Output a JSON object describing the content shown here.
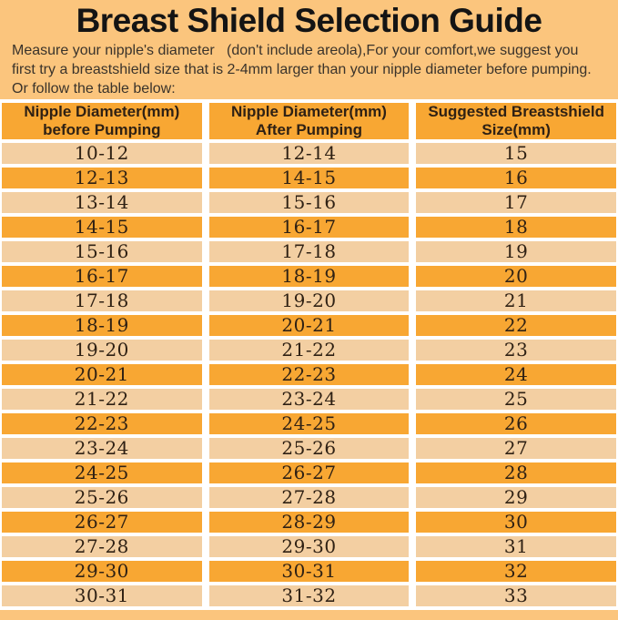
{
  "title": "Breast Shield Selection Guide",
  "intro": {
    "line1": "Measure your nipple's diameter   (don't include areola),For your comfort,we suggest you",
    "line2": "first try a breastshield size that is 2-4mm larger than your nipple diameter before pumping.",
    "line3": "Or follow the table below:"
  },
  "table": {
    "headers": [
      "Nipple Diameter(mm)\nbefore Pumping",
      "Nipple Diameter(mm)\nAfter Pumping",
      "Suggested Breastshield\nSize(mm)"
    ],
    "rows": [
      [
        "10-12",
        "12-14",
        "15"
      ],
      [
        "12-13",
        "14-15",
        "16"
      ],
      [
        "13-14",
        "15-16",
        "17"
      ],
      [
        "14-15",
        "16-17",
        "18"
      ],
      [
        "15-16",
        "17-18",
        "19"
      ],
      [
        "16-17",
        "18-19",
        "20"
      ],
      [
        "17-18",
        "19-20",
        "21"
      ],
      [
        "18-19",
        "20-21",
        "22"
      ],
      [
        "19-20",
        "21-22",
        "23"
      ],
      [
        "20-21",
        "22-23",
        "24"
      ],
      [
        "21-22",
        "23-24",
        "25"
      ],
      [
        "22-23",
        "24-25",
        "26"
      ],
      [
        "23-24",
        "25-26",
        "27"
      ],
      [
        "24-25",
        "26-27",
        "28"
      ],
      [
        "25-26",
        "27-28",
        "29"
      ],
      [
        "26-27",
        "28-29",
        "30"
      ],
      [
        "27-28",
        "29-30",
        "31"
      ],
      [
        "29-30",
        "30-31",
        "32"
      ],
      [
        "30-31",
        "31-32",
        "33"
      ]
    ]
  },
  "colors": {
    "page_background": "#FBC57D",
    "header_row_background": "#F8A733",
    "row_dark_background": "#F8A733",
    "row_light_background": "#F3CFA2",
    "grid_gap": "#FFFFFF",
    "title_text": "#141414",
    "body_text": "#3A332B",
    "table_text": "#2F2114"
  }
}
